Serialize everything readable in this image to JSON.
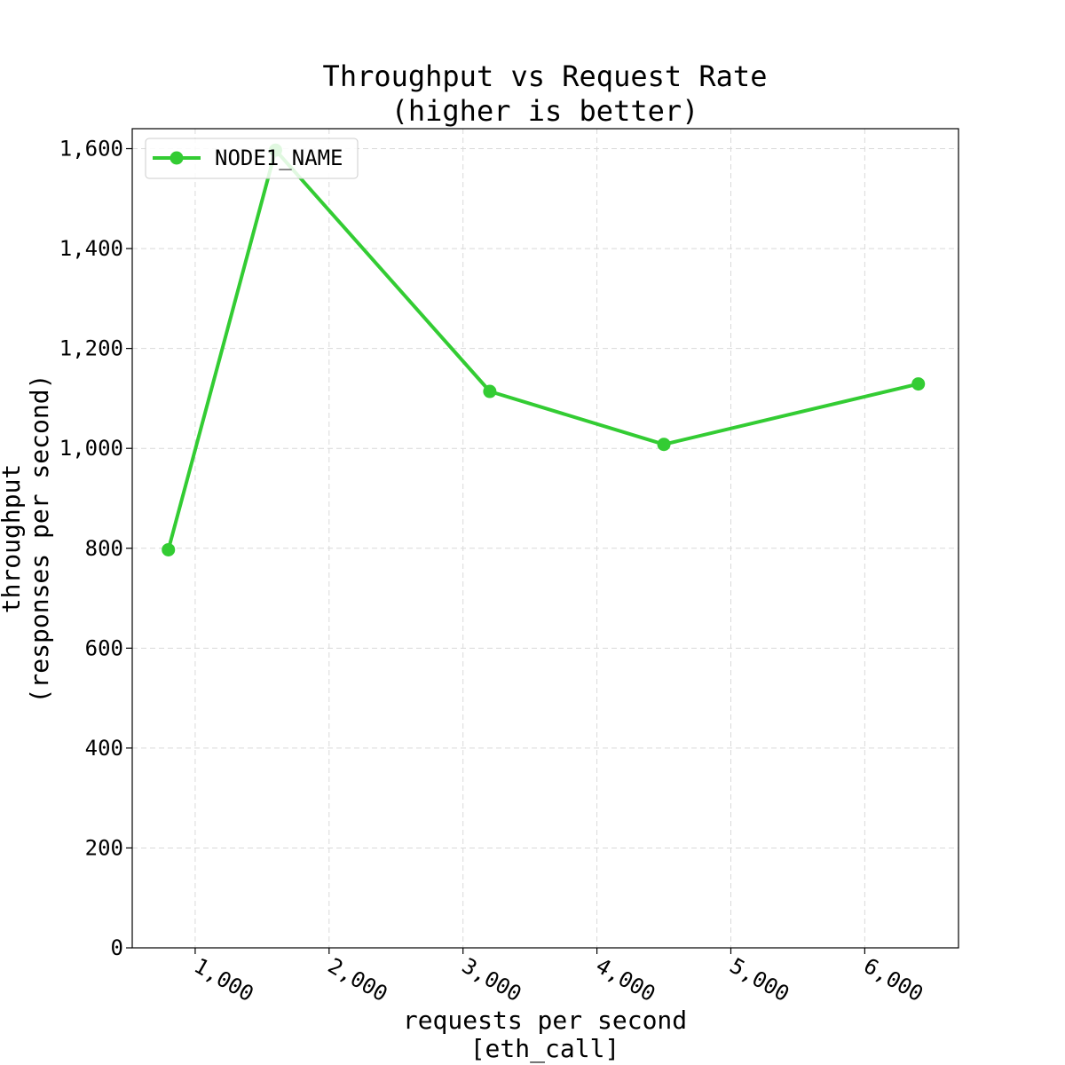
{
  "chart_data": {
    "type": "line",
    "title": [
      "Throughput vs Request Rate",
      "(higher is better)"
    ],
    "xlabel": [
      "requests per second",
      "[eth_call]"
    ],
    "ylabel": [
      "throughput",
      "(responses per second)"
    ],
    "xlim": [
      530,
      6700
    ],
    "ylim": [
      0,
      1640
    ],
    "xticks": [
      1000,
      2000,
      3000,
      4000,
      5000,
      6000
    ],
    "xtick_labels": [
      "1,000",
      "2,000",
      "3,000",
      "4,000",
      "5,000",
      "6,000"
    ],
    "yticks": [
      0,
      200,
      400,
      600,
      800,
      1000,
      1200,
      1400,
      1600
    ],
    "ytick_labels": [
      "0",
      "200",
      "400",
      "600",
      "800",
      "1,000",
      "1,200",
      "1,400",
      "1,600"
    ],
    "grid": true,
    "legend_position": "upper-left",
    "series": [
      {
        "name": "NODE1_NAME",
        "color": "#33cc33",
        "marker": "circle",
        "x": [
          800,
          1600,
          3200,
          4500,
          6400
        ],
        "y": [
          797,
          1597,
          1114,
          1008,
          1129
        ]
      }
    ]
  }
}
